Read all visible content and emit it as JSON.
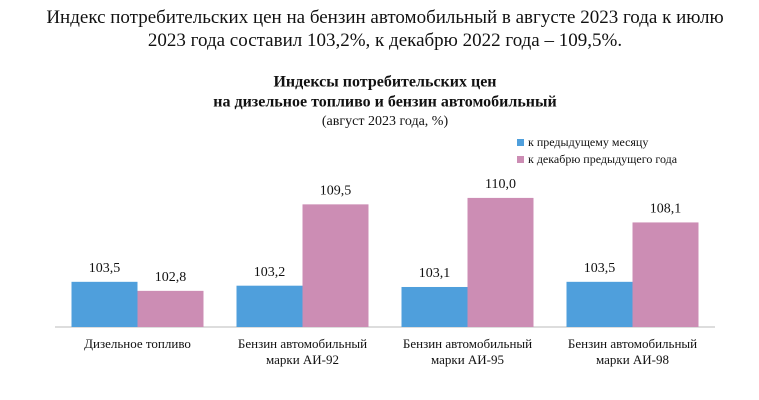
{
  "paragraph": "Индекс потребительских цен на бензин автомобильный в августе 2023 года к июлю 2023 года составил 103,2%, к декабрю 2022 года – 109,5%.",
  "chart_data": {
    "type": "bar",
    "title": [
      "Индексы потребительских цен",
      "на дизельное топливо и бензин автомобильный"
    ],
    "subtitle": "(август 2023 года, %)",
    "categories": [
      [
        "Дизельное топливо"
      ],
      [
        "Бензин автомобильный",
        "марки АИ-92"
      ],
      [
        "Бензин автомобильный",
        "марки АИ-95"
      ],
      [
        "Бензин автомобильный",
        "марки АИ-98"
      ]
    ],
    "series": [
      {
        "name": "к предыдущему месяцу",
        "color": "#4f9fdc",
        "values": [
          103.5,
          103.2,
          103.1,
          103.5
        ],
        "value_labels": [
          "103,5",
          "103,2",
          "103,1",
          "103,5"
        ]
      },
      {
        "name": "к декабрю предыдущего года",
        "color": "#cc8db4",
        "values": [
          102.8,
          109.5,
          110.0,
          108.1
        ],
        "value_labels": [
          "102,8",
          "109,5",
          "110,0",
          "108,1"
        ]
      }
    ],
    "ylim": [
      100,
      111
    ],
    "legend": "top-right"
  }
}
